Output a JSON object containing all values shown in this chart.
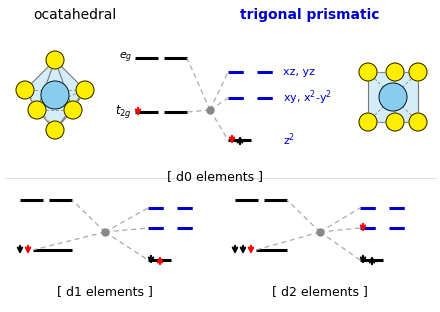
{
  "title_oct": "ocatahedral",
  "title_tri": "trigonal prismatic",
  "title_tri_color": "#0000cc",
  "bg_color": "#ffffff",
  "label_d0": "[ d0 elements ]",
  "label_d1": "[ d1 elements ]",
  "label_d2": "[ d2 elements ]",
  "oct_color": "#000000",
  "tri_color": "#0000cc",
  "center_color": "#888888",
  "dashed_conn_color": "#aaaaaa",
  "sphere_yellow": "#ffee00",
  "sphere_blue": "#88ccee",
  "line_lw": 2.2
}
